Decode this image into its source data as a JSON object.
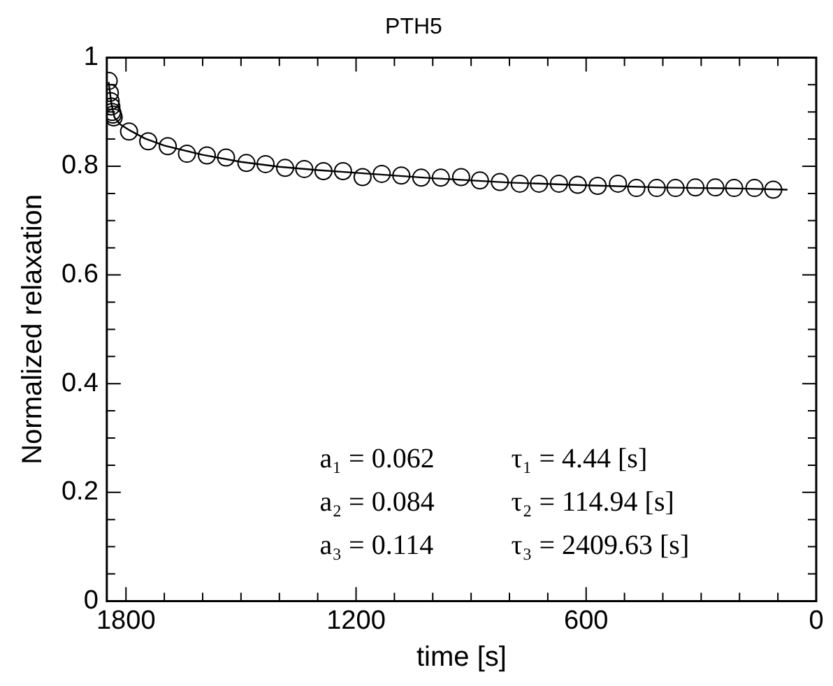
{
  "chart_data": {
    "type": "scatter",
    "title": "PTH5",
    "xlabel": "time [s]",
    "ylabel": "Normalized relaxation",
    "xlim": [
      1850,
      0
    ],
    "ylim": [
      0,
      1
    ],
    "xticks": [
      1800,
      {
        "value": 1700,
        "label": null
      },
      {
        "value": 1600,
        "label": null
      },
      {
        "value": 1500,
        "label": null
      },
      {
        "value": 1400,
        "label": null
      },
      {
        "value": 1300,
        "label": null
      },
      1200,
      {
        "value": 1100,
        "label": null
      },
      {
        "value": 1000,
        "label": null
      },
      {
        "value": 900,
        "label": null
      },
      {
        "value": 800,
        "label": null
      },
      {
        "value": 700,
        "label": null
      },
      600,
      {
        "value": 500,
        "label": null
      },
      {
        "value": 400,
        "label": null
      },
      {
        "value": 300,
        "label": null
      },
      {
        "value": 200,
        "label": null
      },
      {
        "value": 100,
        "label": null
      },
      0
    ],
    "yticks": [
      0,
      {
        "value": 0.05,
        "label": null
      },
      {
        "value": 0.1,
        "label": null
      },
      {
        "value": 0.15,
        "label": null
      },
      0.2,
      {
        "value": 0.25,
        "label": null
      },
      {
        "value": 0.3,
        "label": null
      },
      {
        "value": 0.35,
        "label": null
      },
      0.4,
      {
        "value": 0.45,
        "label": null
      },
      {
        "value": 0.5,
        "label": null
      },
      {
        "value": 0.55,
        "label": null
      },
      0.6,
      {
        "value": 0.65,
        "label": null
      },
      {
        "value": 0.7,
        "label": null
      },
      {
        "value": 0.75,
        "label": null
      },
      0.8,
      {
        "value": 0.85,
        "label": null
      },
      {
        "value": 0.9,
        "label": null
      },
      {
        "value": 0.95,
        "label": null
      },
      1
    ],
    "grid": false,
    "legend": false,
    "marker": "circle",
    "series": [
      {
        "color": "#000000",
        "x": [
          1845,
          1842,
          1840,
          1838,
          1836,
          1834,
          1832,
          1792,
          1742,
          1691,
          1641,
          1589,
          1539,
          1486,
          1436,
          1385,
          1335,
          1285,
          1234,
          1183,
          1133,
          1082,
          1030,
          979,
          926,
          877,
          825,
          773,
          723,
          671,
          622,
          570,
          517,
          469,
          416,
          367,
          315,
          263,
          214,
          161,
          112
        ],
        "values": [
          0.957,
          0.935,
          0.92,
          0.91,
          0.9,
          0.895,
          0.89,
          0.864,
          0.846,
          0.837,
          0.823,
          0.82,
          0.816,
          0.806,
          0.804,
          0.797,
          0.795,
          0.791,
          0.791,
          0.78,
          0.786,
          0.783,
          0.779,
          0.779,
          0.78,
          0.774,
          0.771,
          0.768,
          0.768,
          0.768,
          0.766,
          0.764,
          0.768,
          0.76,
          0.76,
          0.76,
          0.761,
          0.761,
          0.76,
          0.76,
          0.757
        ]
      },
      {
        "type": "line",
        "color": "#000000",
        "line_style": "solid",
        "marker": "none",
        "x": [
          1845,
          1838,
          1830,
          1815,
          1790,
          1750,
          1700,
          1600,
          1500,
          1400,
          1300,
          1200,
          1000,
          800,
          600,
          400,
          200,
          75
        ],
        "values": [
          0.955,
          0.915,
          0.89,
          0.877,
          0.866,
          0.851,
          0.838,
          0.821,
          0.808,
          0.799,
          0.793,
          0.788,
          0.778,
          0.77,
          0.765,
          0.761,
          0.759,
          0.757
        ]
      }
    ],
    "annotations": [
      "a₁ = 0.062",
      "τ₁ = 4.44 [s]",
      "a₂ = 0.084",
      "τ₂ = 114.94 [s]",
      "a₃ = 0.114",
      "τ₃ = 2409.63 [s]"
    ]
  }
}
